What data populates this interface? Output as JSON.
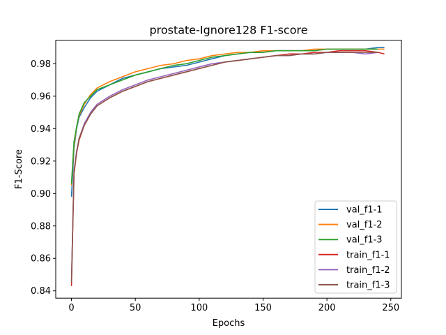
{
  "chart_data": {
    "type": "line",
    "title": "prostate-Ignore128 F1-score",
    "xlabel": "Epochs",
    "ylabel": "F1-Score",
    "xlim": [
      -12.3,
      258.3
    ],
    "ylim": [
      0.8355,
      0.9945
    ],
    "xticks": [
      0,
      50,
      100,
      150,
      200,
      250
    ],
    "yticks": [
      0.84,
      0.86,
      0.88,
      0.9,
      0.92,
      0.94,
      0.96,
      0.98
    ],
    "ytick_labels": [
      "0.84",
      "0.86",
      "0.88",
      "0.90",
      "0.92",
      "0.94",
      "0.96",
      "0.98"
    ],
    "grid": false,
    "legend_position": "lower-right",
    "series": [
      {
        "name": "val_f1-1",
        "color": "#1f77b4",
        "x": [
          0,
          2,
          4,
          6,
          10,
          15,
          20,
          30,
          40,
          50,
          60,
          70,
          80,
          90,
          100,
          110,
          120,
          130,
          140,
          150,
          160,
          170,
          180,
          190,
          200,
          210,
          220,
          230,
          240,
          245
        ],
        "y": [
          0.898,
          0.928,
          0.94,
          0.947,
          0.953,
          0.959,
          0.963,
          0.967,
          0.971,
          0.973,
          0.975,
          0.977,
          0.978,
          0.979,
          0.981,
          0.983,
          0.985,
          0.986,
          0.987,
          0.987,
          0.988,
          0.988,
          0.988,
          0.988,
          0.989,
          0.989,
          0.989,
          0.989,
          0.99,
          0.99
        ]
      },
      {
        "name": "val_f1-2",
        "color": "#ff7f0e",
        "x": [
          0,
          2,
          4,
          6,
          10,
          15,
          20,
          30,
          40,
          50,
          60,
          70,
          80,
          90,
          100,
          110,
          120,
          130,
          140,
          150,
          160,
          170,
          180,
          190,
          200,
          210,
          220,
          230,
          240,
          245
        ],
        "y": [
          0.905,
          0.93,
          0.941,
          0.948,
          0.955,
          0.961,
          0.965,
          0.969,
          0.972,
          0.975,
          0.977,
          0.979,
          0.98,
          0.982,
          0.983,
          0.985,
          0.986,
          0.987,
          0.987,
          0.988,
          0.988,
          0.988,
          0.988,
          0.989,
          0.989,
          0.989,
          0.989,
          0.989,
          0.989,
          0.989
        ]
      },
      {
        "name": "val_f1-3",
        "color": "#2ca02c",
        "x": [
          0,
          2,
          4,
          6,
          10,
          15,
          20,
          30,
          40,
          50,
          60,
          70,
          80,
          90,
          100,
          110,
          120,
          130,
          140,
          150,
          160,
          170,
          180,
          190,
          200,
          210,
          220,
          230,
          240
        ],
        "y": [
          0.906,
          0.932,
          0.941,
          0.949,
          0.956,
          0.96,
          0.964,
          0.967,
          0.97,
          0.973,
          0.975,
          0.977,
          0.979,
          0.98,
          0.982,
          0.984,
          0.985,
          0.986,
          0.987,
          0.987,
          0.988,
          0.988,
          0.988,
          0.988,
          0.989,
          0.989,
          0.989,
          0.989,
          0.989
        ]
      },
      {
        "name": "train_f1-1",
        "color": "#d62728",
        "x": [
          0,
          2,
          4,
          6,
          10,
          15,
          20,
          30,
          40,
          50,
          60,
          70,
          80,
          90,
          100,
          110,
          120,
          130,
          140,
          150,
          160,
          170,
          180,
          190,
          200,
          210,
          220,
          230,
          240,
          245
        ],
        "y": [
          0.843,
          0.912,
          0.925,
          0.933,
          0.942,
          0.949,
          0.954,
          0.959,
          0.963,
          0.966,
          0.969,
          0.971,
          0.973,
          0.975,
          0.977,
          0.979,
          0.981,
          0.982,
          0.983,
          0.984,
          0.985,
          0.986,
          0.986,
          0.987,
          0.987,
          0.988,
          0.988,
          0.988,
          0.987,
          0.986
        ]
      },
      {
        "name": "train_f1-2",
        "color": "#9467bd",
        "x": [
          0,
          2,
          4,
          6,
          10,
          15,
          20,
          30,
          40,
          50,
          60,
          70,
          80,
          90,
          100,
          110,
          120,
          130,
          140,
          150,
          160,
          170,
          180,
          190,
          200,
          210,
          220,
          230,
          240
        ],
        "y": [
          0.846,
          0.914,
          0.926,
          0.934,
          0.943,
          0.95,
          0.955,
          0.96,
          0.964,
          0.967,
          0.97,
          0.972,
          0.974,
          0.976,
          0.978,
          0.98,
          0.981,
          0.982,
          0.983,
          0.984,
          0.985,
          0.985,
          0.986,
          0.986,
          0.987,
          0.987,
          0.987,
          0.986,
          0.987
        ]
      },
      {
        "name": "train_f1-3",
        "color": "#8c564b",
        "x": [
          0,
          2,
          4,
          6,
          10,
          15,
          20,
          30,
          40,
          50,
          60,
          70,
          80,
          90,
          100,
          110,
          120,
          130,
          140,
          150,
          160,
          170,
          180,
          190,
          200,
          210,
          220,
          230,
          240
        ],
        "y": [
          0.845,
          0.913,
          0.925,
          0.934,
          0.942,
          0.949,
          0.954,
          0.959,
          0.963,
          0.966,
          0.969,
          0.971,
          0.973,
          0.975,
          0.977,
          0.979,
          0.981,
          0.982,
          0.983,
          0.984,
          0.985,
          0.985,
          0.986,
          0.986,
          0.987,
          0.987,
          0.987,
          0.987,
          0.987
        ]
      }
    ]
  }
}
